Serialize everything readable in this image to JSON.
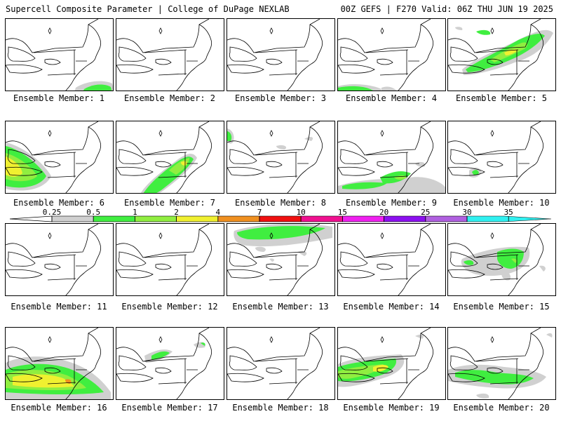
{
  "header": {
    "left": "Supercell Composite Parameter | College of DuPage NEXLAB",
    "right": "00Z GEFS | F270 Valid: 06Z THU JUN 19 2025"
  },
  "legend": {
    "ticks": [
      "0.25",
      "0.5",
      "1",
      "2",
      "4",
      "7",
      "10",
      "15",
      "20",
      "25",
      "30",
      "35"
    ],
    "colors": [
      "#d0d0d0",
      "#40ee40",
      "#90ee40",
      "#f0f030",
      "#f09020",
      "#f01010",
      "#f01090",
      "#f020f0",
      "#8c10f0",
      "#b060e0",
      "#30f0f0"
    ]
  },
  "panels": [
    {
      "label": "Ensemble Member: 1",
      "intensity": "low"
    },
    {
      "label": "Ensemble Member: 2",
      "intensity": "none"
    },
    {
      "label": "Ensemble Member: 3",
      "intensity": "none"
    },
    {
      "label": "Ensemble Member: 4",
      "intensity": "low"
    },
    {
      "label": "Ensemble Member: 5",
      "intensity": "high"
    },
    {
      "label": "Ensemble Member: 6",
      "intensity": "high"
    },
    {
      "label": "Ensemble Member: 7",
      "intensity": "high"
    },
    {
      "label": "Ensemble Member: 8",
      "intensity": "low"
    },
    {
      "label": "Ensemble Member: 9",
      "intensity": "medium"
    },
    {
      "label": "Ensemble Member: 10",
      "intensity": "low"
    },
    {
      "label": "Ensemble Member: 11",
      "intensity": "none"
    },
    {
      "label": "Ensemble Member: 12",
      "intensity": "none"
    },
    {
      "label": "Ensemble Member: 13",
      "intensity": "medium"
    },
    {
      "label": "Ensemble Member: 14",
      "intensity": "none"
    },
    {
      "label": "Ensemble Member: 15",
      "intensity": "medium"
    },
    {
      "label": "Ensemble Member: 16",
      "intensity": "high"
    },
    {
      "label": "Ensemble Member: 17",
      "intensity": "low"
    },
    {
      "label": "Ensemble Member: 18",
      "intensity": "none"
    },
    {
      "label": "Ensemble Member: 19",
      "intensity": "high"
    },
    {
      "label": "Ensemble Member: 20",
      "intensity": "medium"
    }
  ]
}
